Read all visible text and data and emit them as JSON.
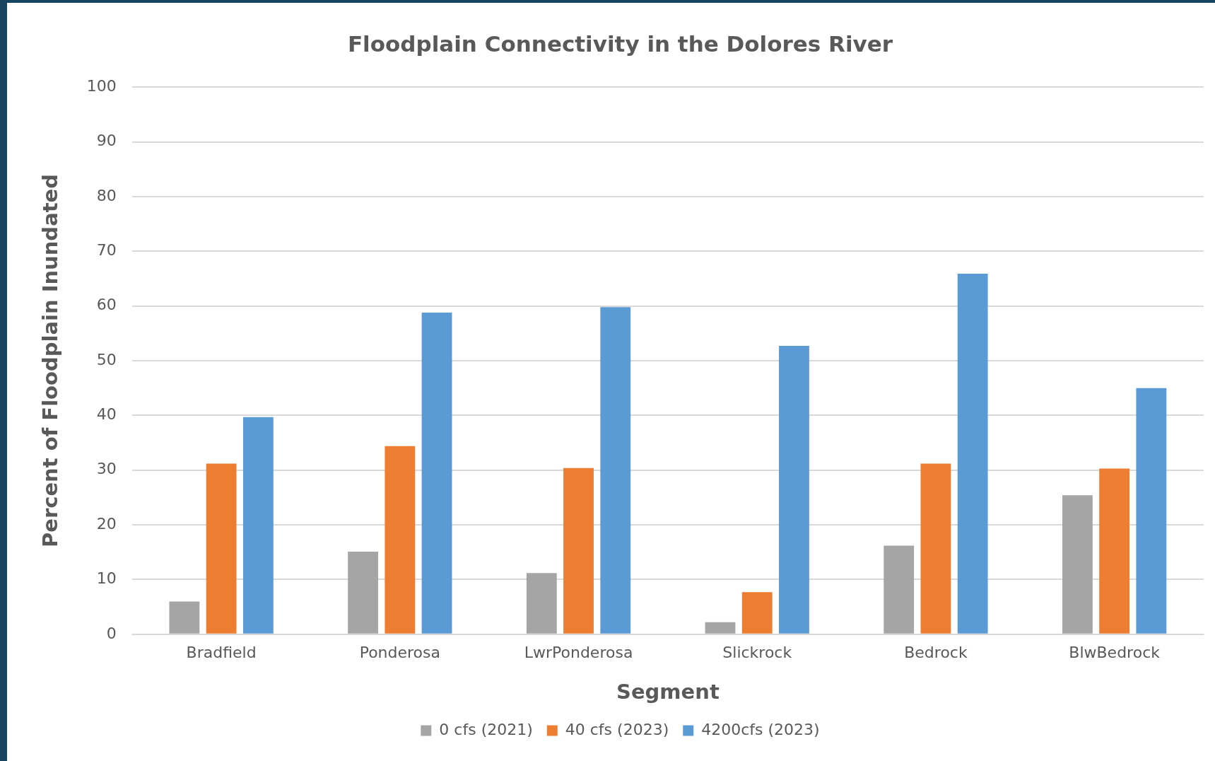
{
  "chart_data": {
    "type": "bar",
    "title": "Floodplain Connectivity in the Dolores River",
    "xlabel": "Segment",
    "ylabel": "Percent of Floodplain Inundated",
    "categories": [
      "Bradfield",
      "Ponderosa",
      "LwrPonderosa",
      "Slickrock",
      "Bedrock",
      "BlwBedrock"
    ],
    "series": [
      {
        "name": "0 cfs (2021)",
        "color": "#a5a5a5",
        "values": [
          6,
          15.1,
          11.2,
          2.2,
          16.2,
          25.4
        ]
      },
      {
        "name": "40 cfs (2023)",
        "color": "#ed7d31",
        "values": [
          31.2,
          34.4,
          30.4,
          7.7,
          31.2,
          30.3
        ]
      },
      {
        "name": "4200cfs (2023)",
        "color": "#5b9bd5",
        "values": [
          39.7,
          58.8,
          59.8,
          52.7,
          65.9,
          45
        ]
      }
    ],
    "ylim": [
      0,
      100
    ],
    "yticks": [
      0,
      10,
      20,
      30,
      40,
      50,
      60,
      70,
      80,
      90,
      100
    ],
    "grid": "y",
    "legend": "bottom"
  }
}
